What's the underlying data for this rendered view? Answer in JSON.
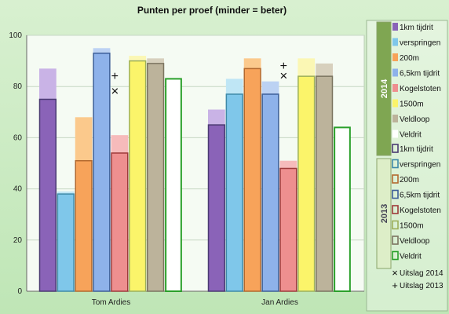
{
  "chart_data": {
    "type": "bar",
    "title": "Punten per proef (minder = beter)",
    "categories": [
      "Tom Ardies",
      "Jan Ardies"
    ],
    "ylim": [
      0,
      100
    ],
    "yticks": [
      0,
      20,
      40,
      60,
      80,
      100
    ],
    "grid": true,
    "legend_position": "right",
    "groups": [
      {
        "name": "2014",
        "color": "#7fa652"
      },
      {
        "name": "2013",
        "color": "#ddeec8"
      }
    ],
    "series": [
      {
        "name": "1km tijdrit",
        "color_2014": "#8a63b8",
        "color_2013": "#c9b3e6",
        "stroke": "#4a3a72",
        "values_2014": [
          75,
          65
        ],
        "values_2013": [
          87,
          71
        ]
      },
      {
        "name": "verspringen",
        "color_2014": "#7fc7ea",
        "color_2013": "#bfe6f5",
        "stroke": "#3f8aa8",
        "values_2014": [
          38,
          77
        ],
        "values_2013": [
          39,
          83
        ]
      },
      {
        "name": "200m",
        "color_2014": "#f7a35a",
        "color_2013": "#fbc98c",
        "stroke": "#b3692e",
        "values_2014": [
          51,
          87
        ],
        "values_2013": [
          68,
          91
        ]
      },
      {
        "name": "6,5km tijdrit",
        "color_2014": "#8eb2ea",
        "color_2013": "#bcd2f3",
        "stroke": "#3d5f98",
        "values_2014": [
          93,
          77
        ],
        "values_2013": [
          95,
          82
        ]
      },
      {
        "name": "Kogelstoten",
        "color_2014": "#ee8f8f",
        "color_2013": "#f6bbbb",
        "stroke": "#9e3a3a",
        "values_2014": [
          54,
          48
        ],
        "values_2013": [
          61,
          51
        ]
      },
      {
        "name": "1500m",
        "color_2014": "#fbf46a",
        "color_2013": "#fbf7b4",
        "stroke": "#9db05a",
        "values_2014": [
          90,
          84
        ],
        "values_2013": [
          92,
          91
        ]
      },
      {
        "name": "Veldloop",
        "color_2014": "#bcb39b",
        "color_2013": "#d7d0bd",
        "stroke": "#7b7460",
        "values_2014": [
          89,
          84
        ],
        "values_2013": [
          91,
          89
        ]
      },
      {
        "name": "Veldrit",
        "color_2014": "#ffffff",
        "color_2013": "#ffffff",
        "stroke": "#2aa02a",
        "values_2014": [
          83,
          64
        ],
        "values_2013": [
          83,
          64
        ]
      }
    ],
    "markers": [
      {
        "name": "Uitslag 2014",
        "symbol": "×",
        "values": [
          78,
          84
        ]
      },
      {
        "name": "Uitslag 2013",
        "symbol": "+",
        "values": [
          84,
          88
        ]
      }
    ]
  }
}
